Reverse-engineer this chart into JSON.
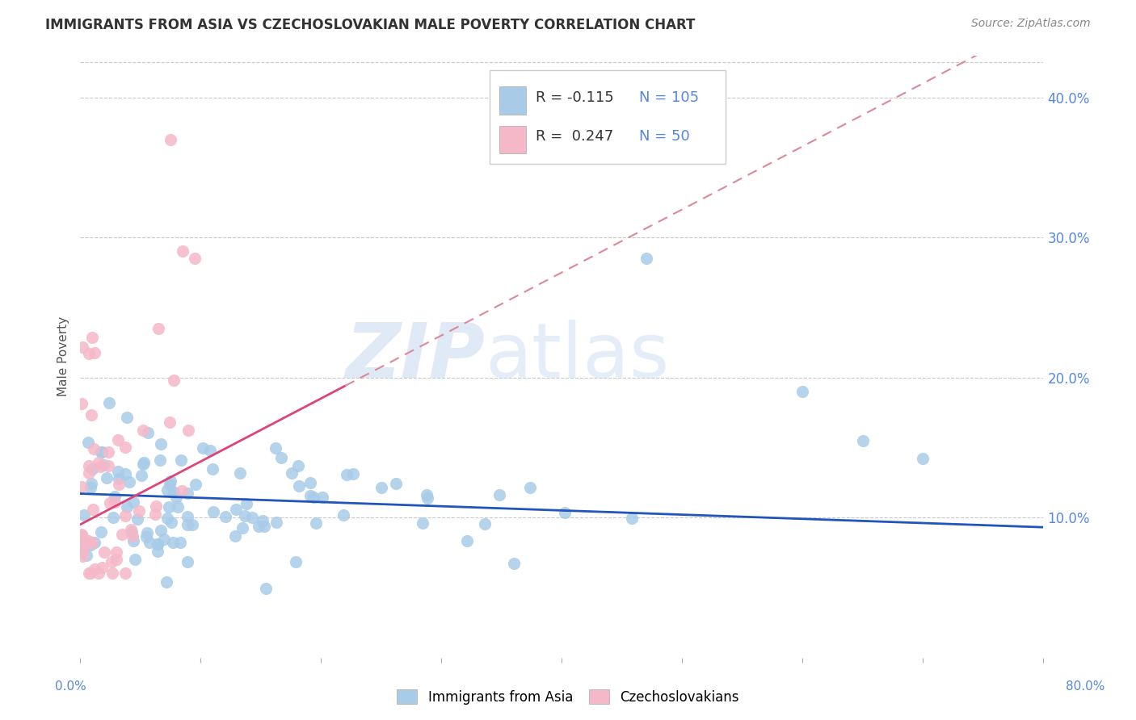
{
  "title": "IMMIGRANTS FROM ASIA VS CZECHOSLOVAKIAN MALE POVERTY CORRELATION CHART",
  "source": "Source: ZipAtlas.com",
  "ylabel": "Male Poverty",
  "series1_label": "Immigrants from Asia",
  "series2_label": "Czechoslovakians",
  "R1": -0.115,
  "N1": 105,
  "R2": 0.247,
  "N2": 50,
  "color1": "#a8cce8",
  "color2": "#f5b8c8",
  "trendline1_color": "#2255bb",
  "trendline2_color": "#dd4477",
  "trendline2_dash_color": "#dd8899",
  "xmin": 0.0,
  "xmax": 0.8,
  "ymin": 0.0,
  "ymax": 0.43,
  "yticks": [
    0.1,
    0.2,
    0.3,
    0.4
  ],
  "ytick_labels": [
    "10.0%",
    "20.0%",
    "30.0%",
    "40.0%"
  ],
  "watermark_zip": "ZIP",
  "watermark_atlas": "atlas",
  "background_color": "#ffffff",
  "grid_color": "#c8c8c8",
  "title_color": "#333333",
  "source_color": "#888888",
  "right_tick_color": "#5588dd",
  "bottom_tick_color": "#5588dd"
}
